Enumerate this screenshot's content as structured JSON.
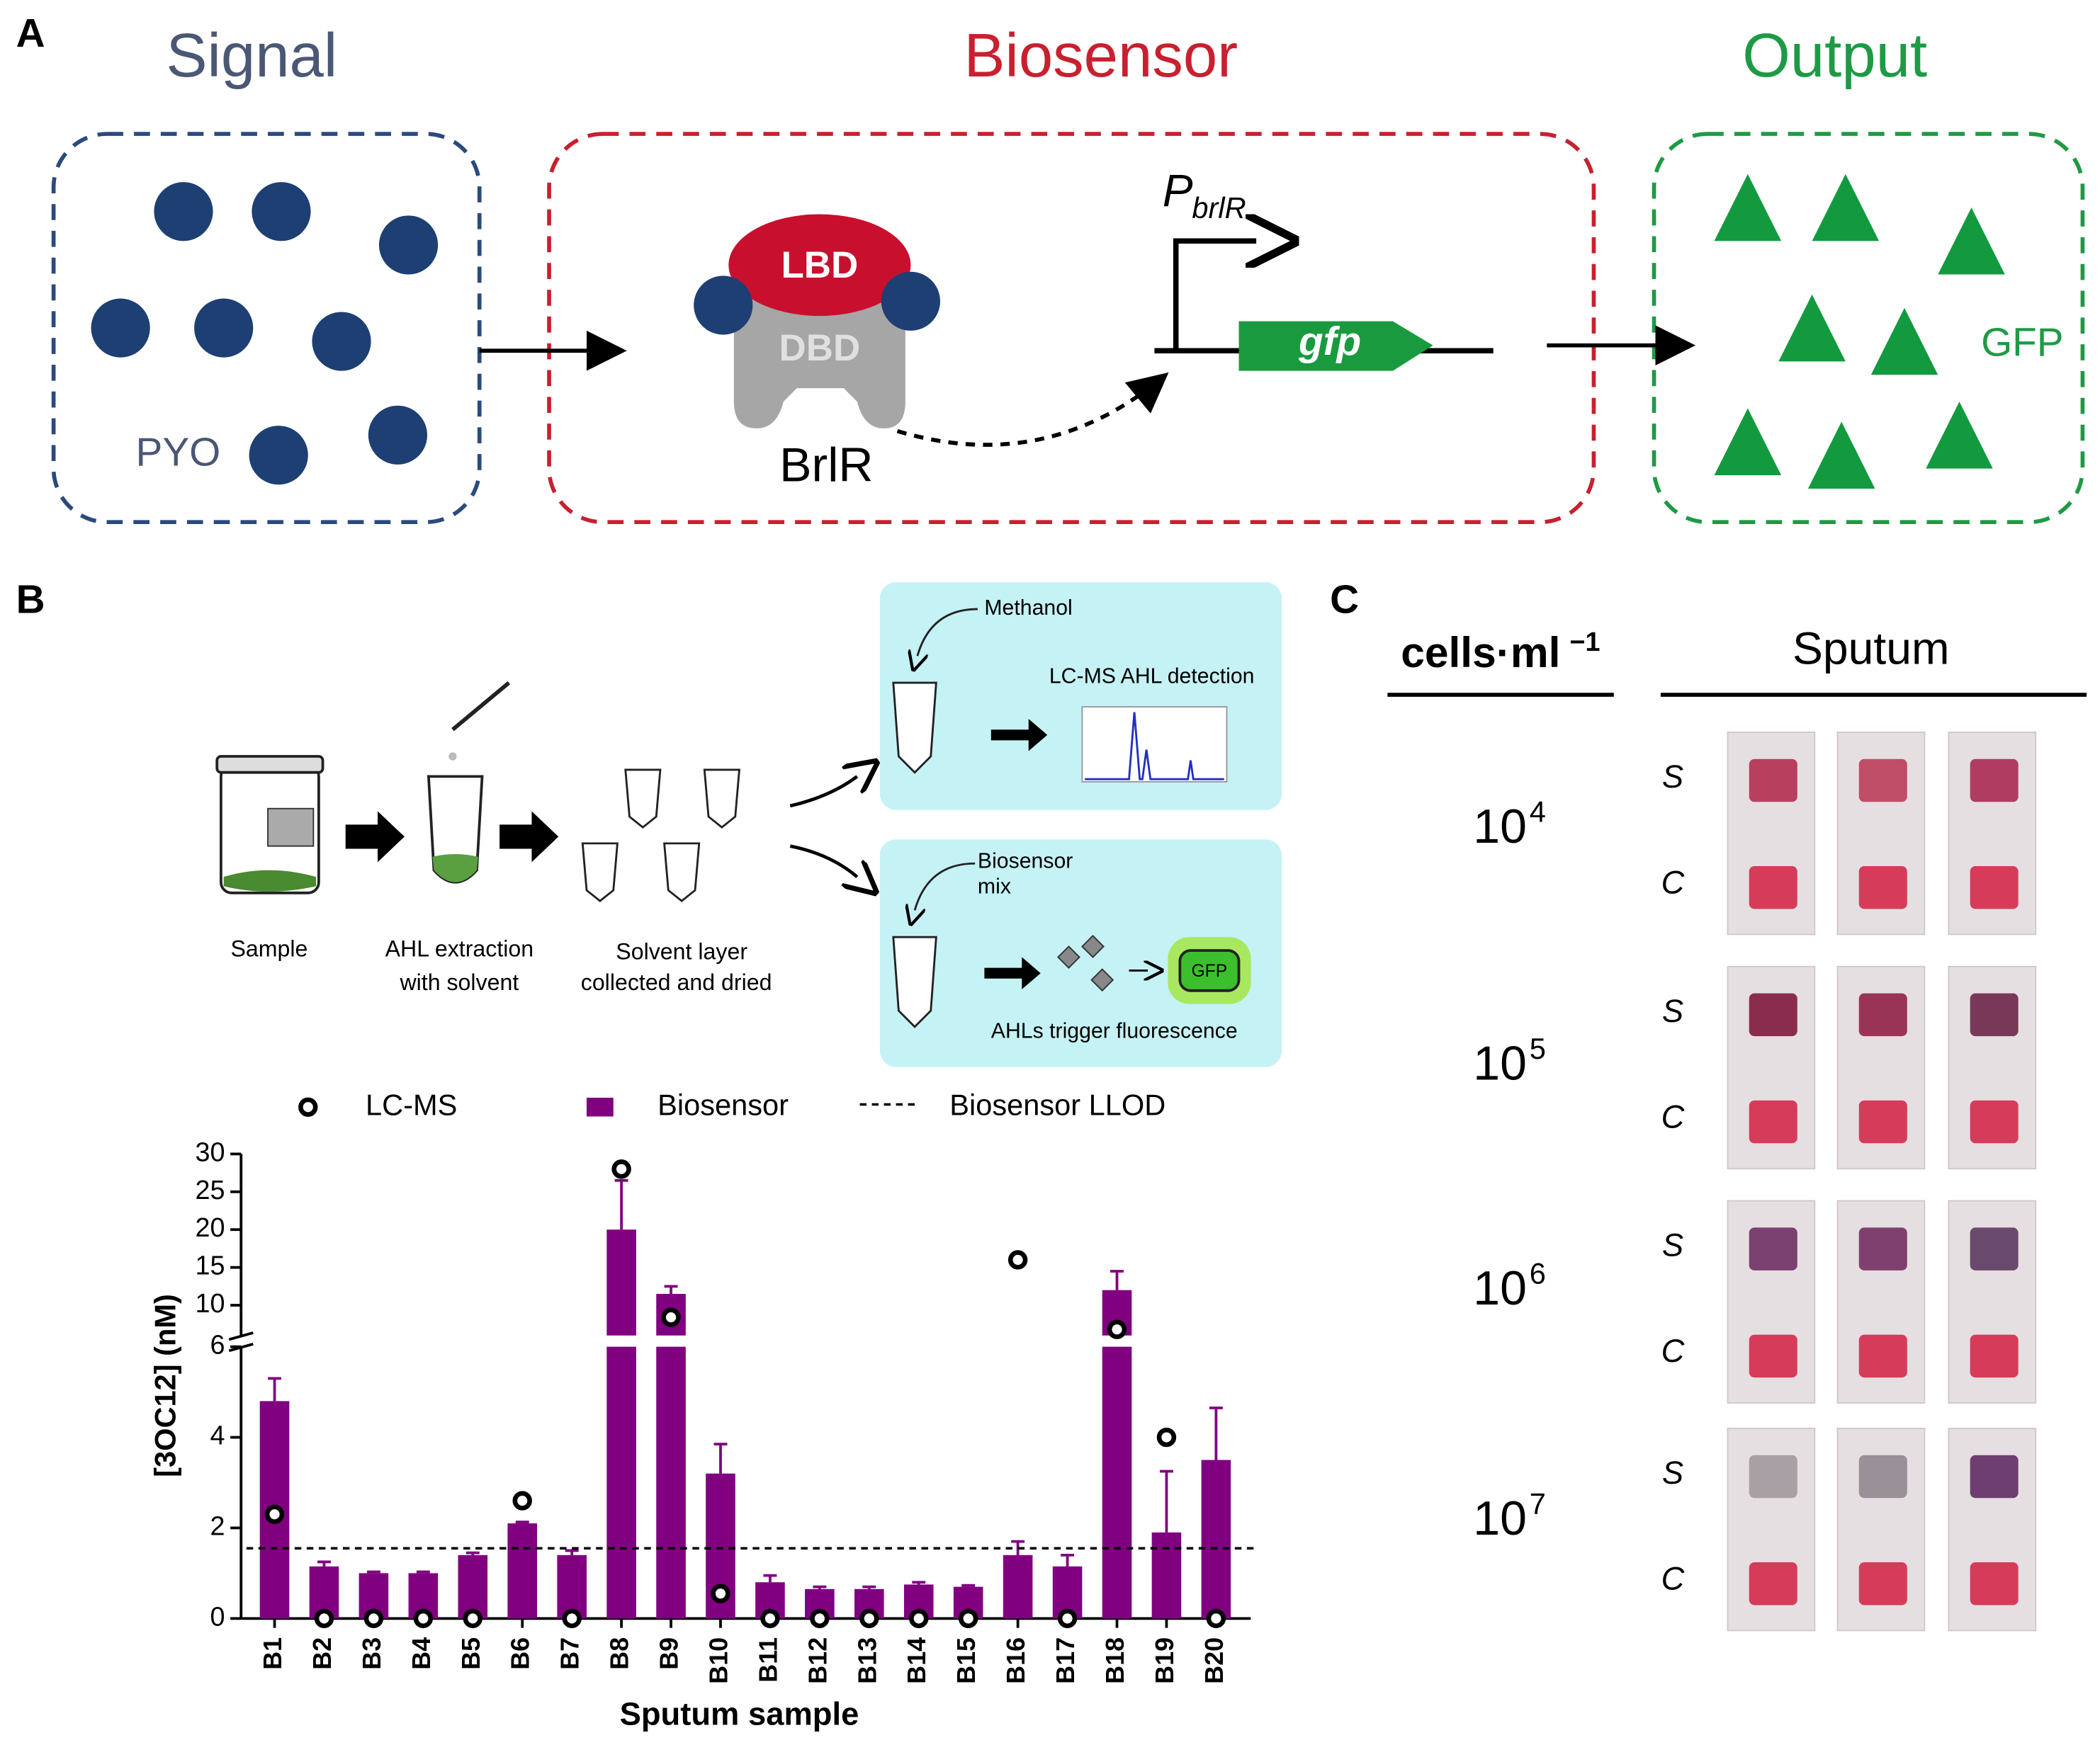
{
  "panel_a": {
    "label": "A",
    "signal": "Signal",
    "biosensor": "Biosensor",
    "output": "Output",
    "pyo": "PYO",
    "lbd": "LBD",
    "dbd": "DBD",
    "protein": "BrlR",
    "promoter": "P",
    "promoter_sub": "brlR",
    "gene": "gfp",
    "gfp": "GFP"
  },
  "panel_b": {
    "label": "B",
    "methanol": "Methanol",
    "lcms_detection": "LC-MS AHL detection",
    "biosensor_mix": [
      "Biosensor",
      "mix"
    ],
    "trigger": "AHLs trigger fluorescence",
    "gfp": "GFP",
    "steps": [
      [
        "Sample"
      ],
      [
        "AHL extraction",
        "with solvent"
      ],
      [
        "Solvent layer",
        "collected and dried"
      ]
    ]
  },
  "chart_data": {
    "type": "bar",
    "xlabel": "Sputum sample",
    "ylabel": "[3OC12] (nM)",
    "categories": [
      "B1",
      "B2",
      "B3",
      "B4",
      "B5",
      "B6",
      "B7",
      "B8",
      "B9",
      "B10",
      "B11",
      "B12",
      "B13",
      "B14",
      "B15",
      "B16",
      "B17",
      "B18",
      "B19",
      "B20"
    ],
    "series": [
      {
        "name": "LC-MS",
        "kind": "point",
        "color": "#000000",
        "values": [
          2.3,
          0,
          0,
          0,
          0,
          2.6,
          0,
          28,
          8.4,
          0.55,
          0,
          0,
          0,
          0,
          0,
          16,
          0,
          6.8,
          4.0,
          0
        ]
      },
      {
        "name": "Biosensor",
        "kind": "bar",
        "color": "#800080",
        "values": [
          4.8,
          1.15,
          1.0,
          1.0,
          1.4,
          2.1,
          1.4,
          20,
          11.5,
          3.2,
          0.8,
          0.65,
          0.65,
          0.75,
          0.7,
          1.4,
          1.15,
          12,
          1.9,
          3.5
        ],
        "errors": [
          0.5,
          0.1,
          0.03,
          0.03,
          0.05,
          0.03,
          0.1,
          6.5,
          1,
          0.65,
          0.15,
          0.05,
          0.05,
          0.05,
          0.03,
          0.3,
          0.25,
          2.5,
          1.35,
          1.15
        ]
      }
    ],
    "llod": {
      "name": "Biosensor LLOD",
      "value": 1.55
    },
    "y_segments": [
      {
        "ylim": [
          0,
          6
        ],
        "yticks": [
          0,
          2,
          4,
          6
        ]
      },
      {
        "ylim": [
          6,
          30
        ],
        "yticks": [
          10,
          15,
          20,
          25,
          30
        ]
      }
    ]
  },
  "panel_c": {
    "label": "C",
    "row_header": "cells·ml",
    "row_header_exponent": "−1",
    "column_header": "Sputum",
    "rows": [
      {
        "base": "10",
        "exponent": "4"
      },
      {
        "base": "10",
        "exponent": "5"
      },
      {
        "base": "10",
        "exponent": "6"
      },
      {
        "base": "10",
        "exponent": "7"
      }
    ],
    "sample_labels": [
      "S",
      "C"
    ]
  }
}
